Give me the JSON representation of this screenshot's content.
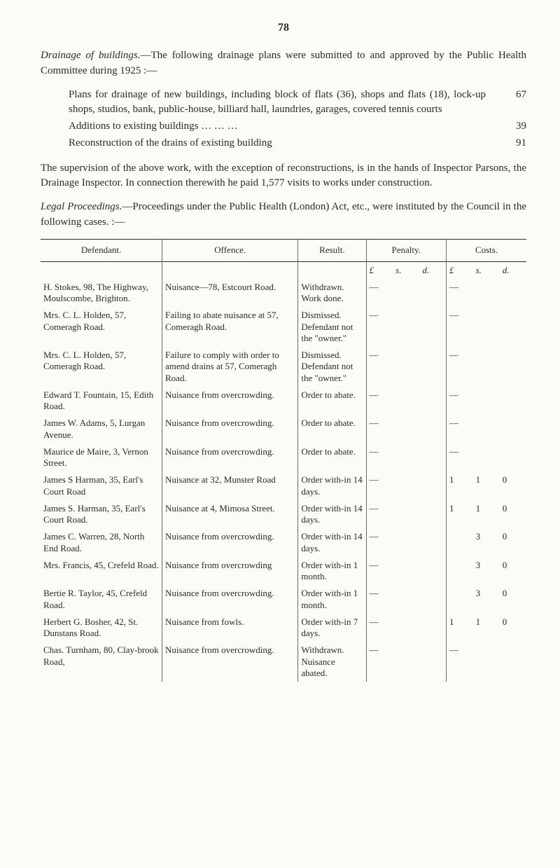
{
  "page_number": "78",
  "p1_lead_em": "Drainage of buildings.",
  "p1_rest": "—The following drainage plans were submitted to and approved by the Public Health Committee during 1925 :—",
  "list": [
    {
      "text": "Plans for drainage of new buildings, including block of flats (36), shops and flats (18), lock-up shops, studios, bank, public-house, billiard hall, laundries, garages, covered tennis courts",
      "value": "67"
    },
    {
      "text": "Additions to existing buildings …  …  …",
      "value": "39"
    },
    {
      "text": "Reconstruction of the drains of existing building",
      "value": "91"
    }
  ],
  "p2": "The supervision of the above work, with the exception of reconstructions, is in the hands of Inspector Parsons, the Drainage Inspector. In connection therewith he paid 1,577 visits to works under construction.",
  "p3_lead_em": "Legal Proceedings.",
  "p3_rest": "—Proceedings under the Public Health (London) Act, etc., were instituted by the Council in the following cases. :—",
  "table": {
    "head": {
      "defendant": "Defendant.",
      "offence": "Offence.",
      "result": "Result.",
      "penalty": "Penalty.",
      "costs": "Costs."
    },
    "lsd": {
      "L": "£",
      "s": "s.",
      "d": "d."
    },
    "rows": [
      {
        "def": "H. Stokes, 98, The Highway, Moulscombe, Brighton.",
        "off": "Nuisance—78, Estcourt Road.",
        "res": "Withdrawn. Work done.",
        "pen": [
          "—",
          "",
          ""
        ],
        "cost": [
          "—",
          "",
          ""
        ]
      },
      {
        "def": "Mrs. C. L. Holden, 57, Comeragh Road.",
        "off": "Failing to abate nuisance at 57, Comeragh Road.",
        "res": "Dismissed. Defendant not the \"owner.\"",
        "pen": [
          "—",
          "",
          ""
        ],
        "cost": [
          "—",
          "",
          ""
        ]
      },
      {
        "def": "Mrs. C. L. Holden, 57, Comeragh Road.",
        "off": "Failure to comply with order to amend drains at 57, Comeragh Road.",
        "res": "Dismissed. Defendant not the \"owner.\"",
        "pen": [
          "—",
          "",
          ""
        ],
        "cost": [
          "—",
          "",
          ""
        ]
      },
      {
        "def": "Edward T. Fountain, 15, Edith Road.",
        "off": "Nuisance from overcrowding.",
        "res": "Order to abate.",
        "pen": [
          "—",
          "",
          ""
        ],
        "cost": [
          "—",
          "",
          ""
        ]
      },
      {
        "def": "James W. Adams, 5, Lurgan Avenue.",
        "off": "Nuisance from overcrowding.",
        "res": "Order to abate.",
        "pen": [
          "—",
          "",
          ""
        ],
        "cost": [
          "—",
          "",
          ""
        ]
      },
      {
        "def": "Maurice de Maire, 3, Vernon Street.",
        "off": "Nuisance from overcrowding.",
        "res": "Order to abate.",
        "pen": [
          "—",
          "",
          ""
        ],
        "cost": [
          "—",
          "",
          ""
        ]
      },
      {
        "def": "James S Harman, 35, Earl's Court Road",
        "off": "Nuisance at 32, Munster Road",
        "res": "Order with-in 14 days.",
        "pen": [
          "—",
          "",
          ""
        ],
        "cost": [
          "1",
          "1",
          "0"
        ]
      },
      {
        "def": "James S. Harman, 35, Earl's Court Road.",
        "off": "Nuisance at 4, Mimosa Street.",
        "res": "Order with-in 14 days.",
        "pen": [
          "—",
          "",
          ""
        ],
        "cost": [
          "1",
          "1",
          "0"
        ]
      },
      {
        "def": "James C. Warren, 28, North End Road.",
        "off": "Nuisance from overcrowding.",
        "res": "Order with-in 14 days.",
        "pen": [
          "—",
          "",
          ""
        ],
        "cost": [
          "",
          "3",
          "0"
        ]
      },
      {
        "def": "Mrs. Francis, 45, Crefeld Road.",
        "off": "Nuisance from overcrowding",
        "res": "Order with-in 1 month.",
        "pen": [
          "—",
          "",
          ""
        ],
        "cost": [
          "",
          "3",
          "0"
        ]
      },
      {
        "def": "Bertie R. Taylor, 45, Crefeld Road.",
        "off": "Nuisance from overcrowding.",
        "res": "Order with-in 1 month.",
        "pen": [
          "—",
          "",
          ""
        ],
        "cost": [
          "",
          "3",
          "0"
        ]
      },
      {
        "def": "Herbert G. Bosher, 42, St. Dunstans Road.",
        "off": "Nuisance from fowls.",
        "res": "Order with-in 7 days.",
        "pen": [
          "—",
          "",
          ""
        ],
        "cost": [
          "1",
          "1",
          "0"
        ]
      },
      {
        "def": "Chas. Turnham, 80, Clay-brook Road,",
        "off": "Nuisance from overcrowding.",
        "res": "Withdrawn. Nuisance abated.",
        "pen": [
          "—",
          "",
          ""
        ],
        "cost": [
          "—",
          "",
          ""
        ]
      }
    ]
  }
}
